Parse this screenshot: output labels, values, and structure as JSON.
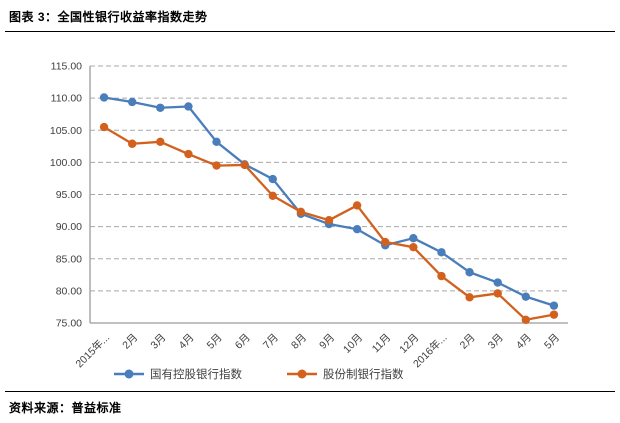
{
  "figure": {
    "title": "图表 3：全国性银行收益率指数走势",
    "source": "资料来源：普益标准"
  },
  "chart_data": {
    "type": "line",
    "title": "全国性银行收益率指数走势",
    "categories": [
      "2015年...",
      "2月",
      "3月",
      "4月",
      "5月",
      "6月",
      "7月",
      "8月",
      "9月",
      "10月",
      "11月",
      "12月",
      "2016年...",
      "2月",
      "3月",
      "4月",
      "5月"
    ],
    "series": [
      {
        "key": "state-owned-banks-index",
        "name": "国有控股银行指数",
        "color": "#4A7EBB",
        "values": [
          110.1,
          109.4,
          108.5,
          108.7,
          103.2,
          99.7,
          97.4,
          92.0,
          90.4,
          89.6,
          87.1,
          88.2,
          86.0,
          82.9,
          81.3,
          79.1,
          77.7
        ]
      },
      {
        "key": "joint-stock-banks-index",
        "name": "股份制银行指数",
        "color": "#D2611E",
        "values": [
          105.5,
          102.9,
          103.2,
          101.3,
          99.5,
          99.6,
          94.8,
          92.3,
          91.0,
          93.3,
          87.6,
          86.8,
          82.3,
          79.0,
          79.6,
          75.5,
          76.3
        ]
      }
    ],
    "xlabel": "",
    "ylabel": "",
    "ylim": [
      75,
      115
    ],
    "ytick_step": 5,
    "ytick_decimals": 2,
    "grid": "horizontal-dashed",
    "legend_position": "bottom",
    "marker": "circle",
    "x_label_rotation": -45
  }
}
